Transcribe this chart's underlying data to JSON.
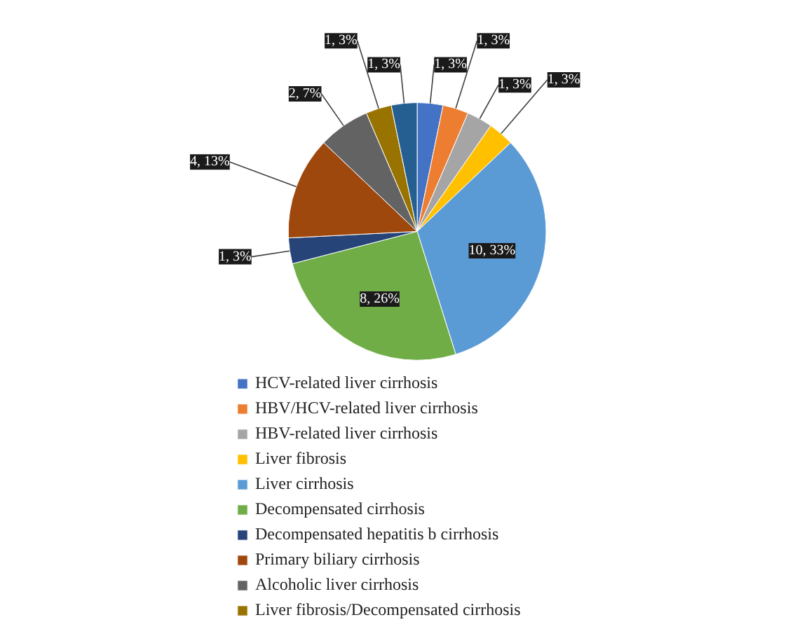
{
  "chart_data": {
    "type": "pie",
    "categories": [
      "HCV-related liver cirrhosis",
      "HBV/HCV-related liver cirrhosis",
      "HBV-related liver cirrhosis",
      "Liver fibrosis",
      "Liver cirrhosis",
      "Decompensated cirrhosis",
      "Decompensated hepatitis b cirrhosis",
      "Primary biliary cirrhosis",
      "Alcoholic liver cirrhosis",
      "Liver fibrosis/Decompensated cirrhosis",
      null
    ],
    "values": [
      1,
      1,
      1,
      1,
      10,
      8,
      1,
      4,
      2,
      1,
      1
    ],
    "colors": [
      "#4472c4",
      "#ed7d31",
      "#a5a5a5",
      "#ffc000",
      "#5b9bd5",
      "#70ad47",
      "#264478",
      "#9e480e",
      "#636363",
      "#997300",
      "#255e91"
    ],
    "value_labels": [
      "1, 3%",
      "1, 3%",
      "1, 3%",
      "1, 3%",
      "10, 33%",
      "8, 26%",
      "1, 3%",
      "4, 13%",
      "2, 7%",
      "1, 3%",
      "1, 3%"
    ],
    "legend": "bottom"
  }
}
